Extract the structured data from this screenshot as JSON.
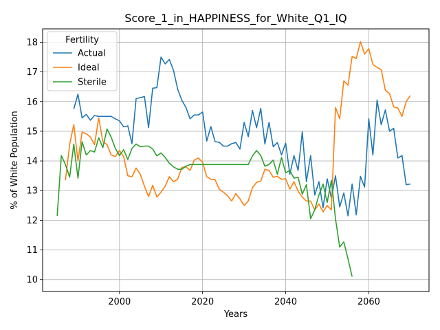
{
  "chart_data": {
    "type": "line",
    "title": "Score_1_in_HAPPINESS_for_White_Q1_IQ",
    "xlabel": "Years",
    "ylabel": "% of White Population",
    "xlim": [
      1981.5,
      2074.5
    ],
    "ylim": [
      9.6,
      18.45
    ],
    "xticks": [
      2000,
      2020,
      2040,
      2060
    ],
    "yticks": [
      10,
      11,
      12,
      13,
      14,
      15,
      16,
      17,
      18
    ],
    "grid": true,
    "legend": {
      "title": "Fertility",
      "placement": "upper-left"
    },
    "series": [
      {
        "name": "Actual",
        "color": "#1f77b4",
        "x": [
          1989,
          1990,
          1991,
          1992,
          1993,
          1994,
          1995,
          1996,
          1997,
          1998,
          1999,
          2000,
          2001,
          2002,
          2003,
          2004,
          2005,
          2006,
          2007,
          2008,
          2009,
          2010,
          2011,
          2012,
          2013,
          2014,
          2015,
          2016,
          2017,
          2018,
          2019,
          2020,
          2021,
          2022,
          2023,
          2024,
          2025,
          2026,
          2027,
          2028,
          2029,
          2030,
          2031,
          2032,
          2033,
          2034,
          2035,
          2036,
          2037,
          2038,
          2039,
          2040,
          2041,
          2042,
          2043,
          2044,
          2045,
          2046,
          2047,
          2048,
          2049,
          2050,
          2051,
          2052,
          2053,
          2054,
          2055,
          2056,
          2057,
          2058,
          2059,
          2060,
          2061,
          2062,
          2063,
          2064,
          2065,
          2066,
          2067,
          2068,
          2069,
          2070
        ],
        "y": [
          15.75,
          16.25,
          15.45,
          15.57,
          15.37,
          15.53,
          15.5,
          15.5,
          15.5,
          15.5,
          15.42,
          15.35,
          15.15,
          15.18,
          14.58,
          16.1,
          16.13,
          16.17,
          15.12,
          16.45,
          16.47,
          17.5,
          17.27,
          17.42,
          17.05,
          16.42,
          16.05,
          15.8,
          15.42,
          15.55,
          15.55,
          15.65,
          14.67,
          15.16,
          14.65,
          14.63,
          14.5,
          14.5,
          14.58,
          14.62,
          14.4,
          15.3,
          14.82,
          15.7,
          15.12,
          15.77,
          14.57,
          15.3,
          14.48,
          14.62,
          14.2,
          14.6,
          13.55,
          14.18,
          13.68,
          14.98,
          13.3,
          14.18,
          12.85,
          13.3,
          12.42,
          13.4,
          12.75,
          13.5,
          12.45,
          12.92,
          12.15,
          13.22,
          12.18,
          13.48,
          13.12,
          15.42,
          14.2,
          16.05,
          15.22,
          15.72,
          15,
          15.1,
          14.1,
          14.18,
          13.2,
          13.22
        ]
      },
      {
        "name": "Ideal",
        "color": "#ff7f0e",
        "x": [
          1987,
          1988,
          1989,
          1990,
          1991,
          1992,
          1993,
          1994,
          1995,
          1996,
          1997,
          1998,
          1999,
          2000,
          2001,
          2002,
          2003,
          2004,
          2005,
          2006,
          2007,
          2008,
          2009,
          2010,
          2011,
          2012,
          2013,
          2014,
          2015,
          2016,
          2017,
          2018,
          2019,
          2020,
          2021,
          2022,
          2023,
          2024,
          2025,
          2026,
          2027,
          2028,
          2029,
          2030,
          2031,
          2032,
          2033,
          2034,
          2035,
          2036,
          2037,
          2038,
          2039,
          2040,
          2041,
          2042,
          2043,
          2044,
          2045,
          2046,
          2047,
          2048,
          2049,
          2050,
          2051,
          2052,
          2053,
          2054,
          2055,
          2056,
          2057,
          2058,
          2059,
          2060,
          2061,
          2062,
          2063,
          2064,
          2065,
          2066,
          2067,
          2068,
          2069,
          2070
        ],
        "y": [
          13.35,
          14.55,
          15.22,
          14,
          14.97,
          14.92,
          14.8,
          14.55,
          15.45,
          14.65,
          14.55,
          14.2,
          14.15,
          14.35,
          14.15,
          13.5,
          13.47,
          13.76,
          13.55,
          13.15,
          12.8,
          13.18,
          12.78,
          12.95,
          13.15,
          13.47,
          13.3,
          13.38,
          13.78,
          13.8,
          13.68,
          14.03,
          14.1,
          13.95,
          13.47,
          13.38,
          13.37,
          13.05,
          12.95,
          12.83,
          12.65,
          12.9,
          12.72,
          12.5,
          12.65,
          13.1,
          13.28,
          13.32,
          13.72,
          13.68,
          13.45,
          13.48,
          13.38,
          13.4,
          13.05,
          13.3,
          12.98,
          12.78,
          12.65,
          12.65,
          12.35,
          12.55,
          12.28,
          12.5,
          12.35,
          15.8,
          15.42,
          16.7,
          16.55,
          17.52,
          17.45,
          18.02,
          17.6,
          17.78,
          17.25,
          17.15,
          17.08,
          16.38,
          16.27,
          15.82,
          15.78,
          15.5,
          16,
          16.2
        ]
      },
      {
        "name": "Sterile",
        "color": "#2ca02c",
        "x": [
          1985,
          1986,
          1987,
          1988,
          1989,
          1990,
          1991,
          1992,
          1993,
          1994,
          1995,
          1996,
          1997,
          1998,
          1999,
          2000,
          2001,
          2002,
          2003,
          2004,
          2005,
          2006,
          2007,
          2008,
          2009,
          2010,
          2011,
          2012,
          2013,
          2014,
          2015,
          2016,
          2017,
          2018,
          2019,
          2020,
          2021,
          2022,
          2023,
          2024,
          2025,
          2026,
          2027,
          2028,
          2029,
          2030,
          2031,
          2032,
          2033,
          2034,
          2035,
          2036,
          2037,
          2038,
          2039,
          2040,
          2041,
          2042,
          2043,
          2044,
          2045,
          2046,
          2047,
          2048,
          2049,
          2050,
          2051,
          2052,
          2053,
          2054,
          2055,
          2056
        ],
        "y": [
          12.15,
          14.18,
          13.88,
          13.45,
          14.57,
          13.42,
          14.65,
          14.2,
          14.35,
          14.3,
          14.78,
          14.45,
          15.08,
          14.8,
          14.42,
          14.18,
          14.38,
          14.05,
          14.42,
          14.57,
          14.48,
          14.5,
          14.5,
          14.4,
          14.17,
          14.27,
          14.12,
          13.92,
          13.8,
          13.72,
          13.72,
          13.82,
          13.88,
          13.88,
          13.88,
          13.88,
          13.88,
          13.88,
          13.88,
          13.88,
          13.88,
          13.88,
          13.88,
          13.88,
          13.88,
          13.88,
          13.88,
          14.17,
          14.35,
          14.18,
          13.82,
          13.88,
          14.03,
          13.55,
          14.12,
          13.6,
          13.68,
          13.42,
          13.45,
          12.88,
          13.2,
          12.05,
          12.35,
          12.85,
          13.22,
          12.6,
          13.35,
          12.05,
          11.1,
          11.27,
          10.7,
          10.1
        ]
      }
    ]
  }
}
